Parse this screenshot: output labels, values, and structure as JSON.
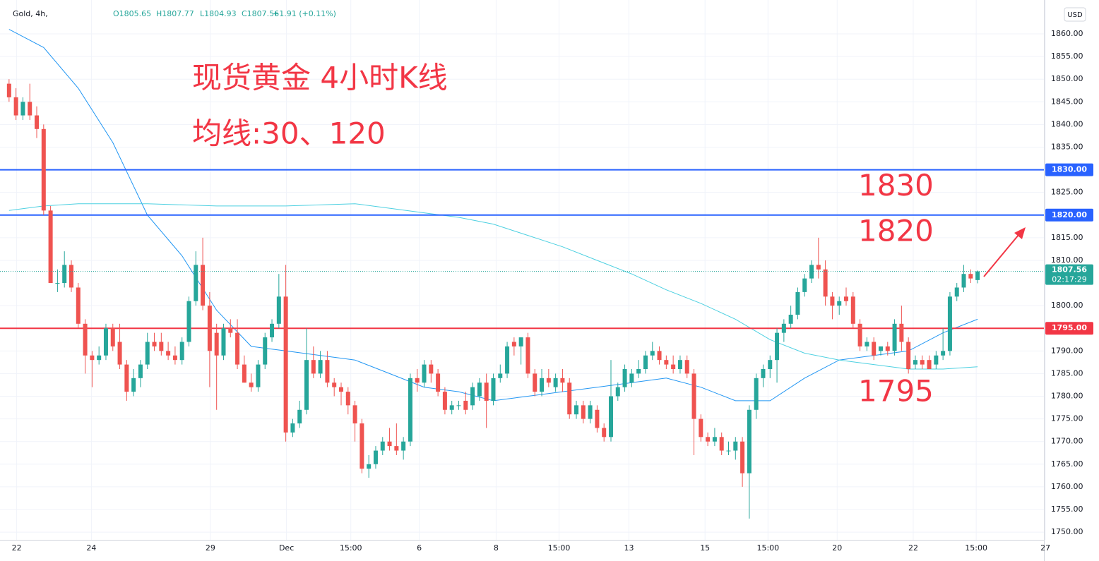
{
  "chart_data": {
    "type": "candlestick",
    "title": "现货黄金 4小时K线",
    "subtitle": "均线:30、120",
    "header": {
      "symbol": "Gold, 4h,",
      "open": "O1805.65",
      "high": "H1807.77",
      "low": "L1804.93",
      "close": "C1807.56",
      "change": "+1.91 (+0.11%)"
    },
    "currency": "USD",
    "grid": true,
    "up_color": "#26a69a",
    "down_color": "#ef5350",
    "xlim": [
      -0.8,
      150.3
    ],
    "xticks": [
      {
        "value": 1.1,
        "label": "22"
      },
      {
        "value": 11.9,
        "label": "24"
      },
      {
        "value": 29.1,
        "label": "29"
      },
      {
        "value": 40.1,
        "label": "Dec"
      },
      {
        "value": 49.4,
        "label": "15:00"
      },
      {
        "value": 59.3,
        "label": "6"
      },
      {
        "value": 70.4,
        "label": "8"
      },
      {
        "value": 79.5,
        "label": "15:00"
      },
      {
        "value": 89.6,
        "label": "13"
      },
      {
        "value": 100.6,
        "label": "15"
      },
      {
        "value": 109.7,
        "label": "15:00"
      },
      {
        "value": 119.7,
        "label": "20"
      },
      {
        "value": 130.7,
        "label": "22"
      },
      {
        "value": 139.8,
        "label": "15:00"
      },
      {
        "value": 149.8,
        "label": "27"
      }
    ],
    "ylim": [
      1748.3,
      1866.7
    ],
    "yticks": [
      {
        "value": 1750,
        "label": "1750.00"
      },
      {
        "value": 1755,
        "label": "1755.00"
      },
      {
        "value": 1760,
        "label": "1760.00"
      },
      {
        "value": 1765,
        "label": "1765.00"
      },
      {
        "value": 1770,
        "label": "1770.00"
      },
      {
        "value": 1775,
        "label": "1775.00"
      },
      {
        "value": 1780,
        "label": "1780.00"
      },
      {
        "value": 1785,
        "label": "1785.00"
      },
      {
        "value": 1790,
        "label": "1790.00"
      },
      {
        "value": 1800,
        "label": "1800.00"
      },
      {
        "value": 1810,
        "label": "1810.00"
      },
      {
        "value": 1815,
        "label": "1815.00"
      },
      {
        "value": 1825,
        "label": "1825.00"
      },
      {
        "value": 1835,
        "label": "1835.00"
      },
      {
        "value": 1840,
        "label": "1840.00"
      },
      {
        "value": 1845,
        "label": "1845.00"
      },
      {
        "value": 1850,
        "label": "1850.00"
      },
      {
        "value": 1855,
        "label": "1855.00"
      },
      {
        "value": 1860,
        "label": "1860.00"
      }
    ],
    "ohlc": [
      [
        1849,
        1850,
        1845,
        1846
      ],
      [
        1846,
        1848,
        1841,
        1842
      ],
      [
        1842,
        1846,
        1841,
        1845
      ],
      [
        1845,
        1849,
        1841,
        1842
      ],
      [
        1842,
        1844,
        1837,
        1839
      ],
      [
        1839,
        1840,
        1820,
        1821
      ],
      [
        1821,
        1822,
        1805,
        1805
      ],
      [
        1805,
        1808,
        1803,
        1805
      ],
      [
        1805,
        1812,
        1804,
        1809
      ],
      [
        1809,
        1810,
        1803,
        1804
      ],
      [
        1804,
        1805,
        1795,
        1796
      ],
      [
        1796,
        1797,
        1785,
        1789
      ],
      [
        1789,
        1790,
        1782,
        1788
      ],
      [
        1788,
        1791,
        1787,
        1789
      ],
      [
        1789,
        1796,
        1788,
        1795
      ],
      [
        1795,
        1796,
        1790,
        1791
      ],
      [
        1792,
        1796,
        1786,
        1787
      ],
      [
        1787,
        1788,
        1779,
        1781
      ],
      [
        1781,
        1786,
        1780,
        1784
      ],
      [
        1784,
        1788,
        1782,
        1787
      ],
      [
        1787,
        1794,
        1786,
        1792
      ],
      [
        1792,
        1794,
        1790,
        1791
      ],
      [
        1792,
        1794,
        1789,
        1790
      ],
      [
        1790,
        1792,
        1788,
        1789
      ],
      [
        1789,
        1791,
        1787,
        1788
      ],
      [
        1788,
        1793,
        1787,
        1792
      ],
      [
        1792,
        1802,
        1791,
        1801
      ],
      [
        1801,
        1812,
        1800,
        1809
      ],
      [
        1809,
        1815,
        1799,
        1800
      ],
      [
        1800,
        1803,
        1782,
        1790
      ],
      [
        1794,
        1796,
        1777,
        1789
      ],
      [
        1789,
        1796,
        1788,
        1795
      ],
      [
        1795,
        1797,
        1793,
        1794
      ],
      [
        1794,
        1797,
        1786,
        1787
      ],
      [
        1787,
        1789,
        1783,
        1783
      ],
      [
        1783,
        1785,
        1781,
        1782
      ],
      [
        1782,
        1788,
        1781,
        1787
      ],
      [
        1787,
        1794,
        1786,
        1793
      ],
      [
        1793,
        1797,
        1792,
        1796
      ],
      [
        1796,
        1807,
        1795,
        1802
      ],
      [
        1802,
        1809,
        1770,
        1772
      ],
      [
        1772,
        1775,
        1771,
        1774
      ],
      [
        1774,
        1779,
        1773,
        1777
      ],
      [
        1777,
        1795,
        1776,
        1788
      ],
      [
        1788,
        1791,
        1784,
        1785
      ],
      [
        1785,
        1790,
        1784,
        1788
      ],
      [
        1788,
        1790,
        1782,
        1783
      ],
      [
        1783,
        1784,
        1780,
        1782
      ],
      [
        1782,
        1783,
        1778,
        1781
      ],
      [
        1781,
        1782,
        1776,
        1778
      ],
      [
        1778,
        1779,
        1770,
        1774
      ],
      [
        1774,
        1775,
        1763,
        1764
      ],
      [
        1764,
        1767,
        1762,
        1765
      ],
      [
        1765,
        1769,
        1764,
        1768
      ],
      [
        1768,
        1771,
        1767,
        1770
      ],
      [
        1770,
        1773,
        1768,
        1769
      ],
      [
        1769,
        1774,
        1767,
        1768
      ],
      [
        1768,
        1771,
        1766,
        1770
      ],
      [
        1770,
        1785,
        1769,
        1784
      ],
      [
        1784,
        1786,
        1781,
        1783
      ],
      [
        1783,
        1788,
        1782,
        1787
      ],
      [
        1787,
        1788,
        1783,
        1785
      ],
      [
        1785,
        1786,
        1780,
        1781
      ],
      [
        1781,
        1782,
        1776,
        1777
      ],
      [
        1777,
        1779,
        1776,
        1778
      ],
      [
        1778,
        1779,
        1777,
        1778
      ],
      [
        1779,
        1781,
        1776,
        1777
      ],
      [
        1778,
        1783,
        1777,
        1782
      ],
      [
        1780,
        1784,
        1779,
        1783
      ],
      [
        1783,
        1785,
        1773,
        1779
      ],
      [
        1779,
        1785,
        1778,
        1784
      ],
      [
        1784,
        1787,
        1783,
        1785
      ],
      [
        1785,
        1792,
        1784,
        1791
      ],
      [
        1792,
        1793,
        1789,
        1791
      ],
      [
        1791,
        1793,
        1787,
        1793
      ],
      [
        1793,
        1794,
        1784,
        1785
      ],
      [
        1785,
        1786,
        1780,
        1781
      ],
      [
        1781,
        1786,
        1780,
        1784
      ],
      [
        1784,
        1786,
        1782,
        1783
      ],
      [
        1782,
        1785,
        1781,
        1784
      ],
      [
        1784,
        1786,
        1781,
        1783
      ],
      [
        1783,
        1784,
        1775,
        1776
      ],
      [
        1776,
        1779,
        1775,
        1778
      ],
      [
        1778,
        1779,
        1774,
        1775
      ],
      [
        1775,
        1779,
        1774,
        1778
      ],
      [
        1777,
        1778,
        1772,
        1773
      ],
      [
        1773,
        1774,
        1770,
        1771
      ],
      [
        1771,
        1788,
        1770,
        1780
      ],
      [
        1780,
        1783,
        1779,
        1782
      ],
      [
        1782,
        1787,
        1781,
        1786
      ],
      [
        1783,
        1786,
        1782,
        1785
      ],
      [
        1785,
        1788,
        1784,
        1786
      ],
      [
        1786,
        1790,
        1785,
        1789
      ],
      [
        1789,
        1792,
        1788,
        1790
      ],
      [
        1790,
        1791,
        1787,
        1788
      ],
      [
        1788,
        1789,
        1786,
        1787
      ],
      [
        1787,
        1789,
        1785,
        1786
      ],
      [
        1786,
        1789,
        1785,
        1788
      ],
      [
        1788,
        1789,
        1784,
        1785
      ],
      [
        1785,
        1786,
        1767,
        1775
      ],
      [
        1775,
        1776,
        1770,
        1771
      ],
      [
        1771,
        1772,
        1769,
        1770
      ],
      [
        1770,
        1773,
        1769,
        1771
      ],
      [
        1771,
        1772,
        1767,
        1768
      ],
      [
        1768,
        1770,
        1767,
        1768
      ],
      [
        1768,
        1771,
        1766,
        1770
      ],
      [
        1770,
        1771,
        1760,
        1763
      ],
      [
        1763,
        1778,
        1753,
        1777
      ],
      [
        1777,
        1785,
        1775,
        1784
      ],
      [
        1784,
        1787,
        1782,
        1786
      ],
      [
        1786,
        1789,
        1784,
        1788
      ],
      [
        1788,
        1795,
        1783,
        1794
      ],
      [
        1794,
        1797,
        1792,
        1796
      ],
      [
        1796,
        1800,
        1795,
        1798
      ],
      [
        1798,
        1804,
        1797,
        1803
      ],
      [
        1803,
        1807,
        1802,
        1806
      ],
      [
        1806,
        1810,
        1805,
        1809
      ],
      [
        1809,
        1815,
        1806,
        1808
      ],
      [
        1808,
        1810,
        1800,
        1802
      ],
      [
        1802,
        1803,
        1797,
        1800
      ],
      [
        1800,
        1802,
        1798,
        1801
      ],
      [
        1802,
        1804,
        1800,
        1801
      ],
      [
        1802,
        1803,
        1795,
        1796
      ],
      [
        1796,
        1797,
        1790,
        1791
      ],
      [
        1791,
        1793,
        1790,
        1792
      ],
      [
        1792,
        1793,
        1788,
        1789
      ],
      [
        1790,
        1791,
        1789,
        1791
      ],
      [
        1791,
        1792,
        1789,
        1790
      ],
      [
        1790,
        1797,
        1789,
        1796
      ],
      [
        1796,
        1800,
        1790,
        1792
      ],
      [
        1792,
        1793,
        1785,
        1786
      ],
      [
        1787,
        1789,
        1786,
        1788
      ],
      [
        1788,
        1789,
        1786,
        1787
      ],
      [
        1788,
        1789,
        1786,
        1786
      ],
      [
        1787,
        1790,
        1786,
        1789
      ],
      [
        1789,
        1795,
        1788,
        1790
      ],
      [
        1790,
        1803,
        1789,
        1802
      ],
      [
        1802,
        1805,
        1801,
        1804
      ],
      [
        1804,
        1809,
        1803,
        1807
      ],
      [
        1807,
        1808,
        1805,
        1806
      ],
      [
        1805.65,
        1807.77,
        1804.93,
        1807.56
      ]
    ],
    "moving_averages": [
      {
        "color": "#2196f3",
        "x": [
          0,
          5,
          10,
          15,
          20,
          25,
          30,
          35,
          40,
          45,
          50,
          55,
          60,
          65,
          70,
          75,
          80,
          85,
          90,
          95,
          100,
          105,
          110,
          115,
          120,
          125,
          130,
          135,
          140
        ],
        "values": [
          1861,
          1857,
          1848,
          1836,
          1820,
          1811,
          1799,
          1791,
          1790,
          1789,
          1788,
          1785,
          1782,
          1781,
          1779,
          1780,
          1781,
          1782,
          1783,
          1784,
          1782,
          1779,
          1779,
          1784,
          1788,
          1789,
          1790,
          1794,
          1797
        ]
      },
      {
        "color": "#4dd0e1",
        "x": [
          0,
          5,
          10,
          20,
          30,
          40,
          50,
          55,
          60,
          65,
          70,
          75,
          80,
          85,
          90,
          95,
          100,
          105,
          110,
          115,
          120,
          125,
          130,
          135,
          140
        ],
        "values": [
          1821,
          1822,
          1822.5,
          1822.5,
          1822,
          1822,
          1822.5,
          1821.5,
          1820.5,
          1819.5,
          1818,
          1815.5,
          1813,
          1810,
          1807,
          1803.5,
          1800.5,
          1797,
          1792.5,
          1789.5,
          1788,
          1787,
          1786,
          1786,
          1786.5
        ]
      }
    ],
    "levels": [
      {
        "value": 1830,
        "value_label": "1830.00",
        "color": "#2962ff"
      },
      {
        "value": 1820,
        "value_label": "1820.00",
        "color": "#2962ff"
      },
      {
        "value": 1795,
        "value_label": "1795.00",
        "color": "#f23645"
      }
    ],
    "last_price": {
      "value": 1807.56,
      "countdown": "02:17:29",
      "color": "#26a69a"
    }
  }
}
